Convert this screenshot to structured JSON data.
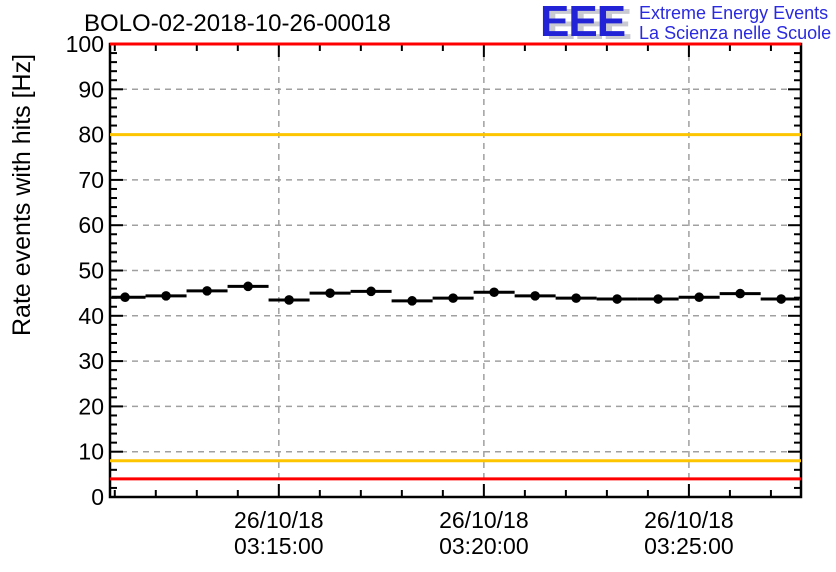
{
  "header": {
    "title": "BOLO-02-2018-10-26-00018",
    "logo": {
      "acronym": "EEE",
      "line1": "Extreme Energy Events",
      "line2": "La Scienza nelle Scuole",
      "color": "#2222d6"
    }
  },
  "chart_data": {
    "type": "scatter",
    "title": "BOLO-02-2018-10-26-00018",
    "xlabel": "",
    "ylabel": "Rate events with hits [Hz]",
    "ylim": [
      0,
      100
    ],
    "y_major_step": 10,
    "y_minor_step": 2,
    "y_tick_labels": [
      "0",
      "10",
      "20",
      "30",
      "40",
      "50",
      "60",
      "70",
      "80",
      "90",
      "100"
    ],
    "y_grid_values": [
      10,
      20,
      30,
      40,
      50,
      60,
      70,
      80,
      90
    ],
    "x_date": "26/10/18",
    "x_start": "03:10:53",
    "x_end": "03:27:44",
    "x_minor_step_seconds": 60,
    "bin_half_width_seconds": 30,
    "x_tick_labels": [
      {
        "date": "26/10/18",
        "time": "03:15:00"
      },
      {
        "date": "26/10/18",
        "time": "03:20:00"
      },
      {
        "date": "26/10/18",
        "time": "03:25:00"
      }
    ],
    "grid": {
      "style": "dashed",
      "color": "#a0a0a0"
    },
    "marker": {
      "shape": "filled-circle",
      "color": "#000000"
    },
    "legend": "none",
    "series": [
      {
        "name": "rate-events-with-hits",
        "points": [
          {
            "time": "03:11:15",
            "value": 44.1
          },
          {
            "time": "03:12:15",
            "value": 44.4
          },
          {
            "time": "03:13:15",
            "value": 45.5
          },
          {
            "time": "03:14:15",
            "value": 46.5
          },
          {
            "time": "03:15:15",
            "value": 43.5
          },
          {
            "time": "03:16:15",
            "value": 45.0
          },
          {
            "time": "03:17:15",
            "value": 45.4
          },
          {
            "time": "03:18:15",
            "value": 43.3
          },
          {
            "time": "03:19:15",
            "value": 43.9
          },
          {
            "time": "03:20:15",
            "value": 45.2
          },
          {
            "time": "03:21:15",
            "value": 44.4
          },
          {
            "time": "03:22:15",
            "value": 43.9
          },
          {
            "time": "03:23:15",
            "value": 43.7
          },
          {
            "time": "03:24:15",
            "value": 43.7
          },
          {
            "time": "03:25:15",
            "value": 44.1
          },
          {
            "time": "03:26:15",
            "value": 44.9
          },
          {
            "time": "03:27:15",
            "value": 43.7
          }
        ]
      }
    ],
    "reference_lines": [
      {
        "name": "upper-alarm",
        "value": 100,
        "color": "#ff0000"
      },
      {
        "name": "upper-warning",
        "value": 80,
        "color": "#fdc400"
      },
      {
        "name": "lower-warning",
        "value": 8,
        "color": "#fdc400"
      },
      {
        "name": "lower-alarm",
        "value": 4,
        "color": "#ff0000"
      }
    ]
  }
}
